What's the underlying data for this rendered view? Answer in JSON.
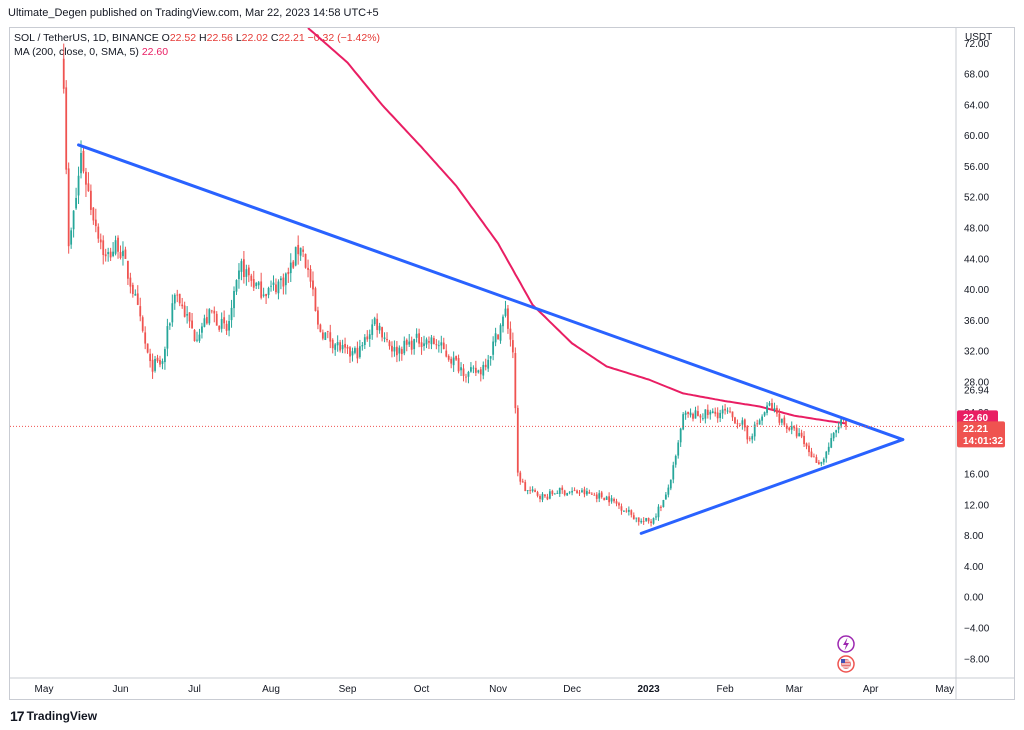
{
  "header": {
    "published_line": "Ultimate_Degen published on TradingView.com, Mar 22, 2023 14:58 UTC+5"
  },
  "legend": {
    "symbol": "SOL / TetherUS, 1D, BINANCE",
    "open_label": "O",
    "open": "22.52",
    "high_label": "H",
    "high": "22.56",
    "low_label": "L",
    "low": "22.02",
    "close_label": "C",
    "close": "22.21",
    "change": "−0.32 (−1.42%)",
    "ma_label": "MA (200, close, 0, SMA, 5)",
    "ma_value": "22.60"
  },
  "footer": {
    "brand": "TradingView",
    "logo": "17"
  },
  "colors": {
    "up": "#26a69a",
    "down": "#ef5350",
    "ma": "#e91e63",
    "trendline": "#2962ff",
    "price_line": "#ef5350",
    "grid": "#ffffff"
  },
  "chart_data": {
    "type": "candlestick",
    "symbol": "SOL / TetherUS",
    "interval": "1D",
    "exchange": "BINANCE",
    "y_axis_unit": "USDT",
    "ylim": [
      -10.5,
      74
    ],
    "y_ticks": [
      "72.00",
      "68.00",
      "64.00",
      "60.00",
      "56.00",
      "52.00",
      "48.00",
      "44.00",
      "40.00",
      "36.00",
      "32.00",
      "28.00",
      "24.00",
      "20.00",
      "16.00",
      "12.00",
      "8.00",
      "4.00",
      "0.00",
      "−4.00",
      "−8.00"
    ],
    "y_tick_values": [
      72,
      68,
      64,
      60,
      56,
      52,
      48,
      44,
      40,
      36,
      32,
      28,
      24,
      20,
      16,
      12,
      8,
      4,
      0,
      -4,
      -8
    ],
    "x_ticks": [
      "May",
      "Jun",
      "Jul",
      "Aug",
      "Sep",
      "Oct",
      "Nov",
      "Dec",
      "2023",
      "Feb",
      "Mar",
      "Apr",
      "May"
    ],
    "x_tick_dates": [
      "2022-05-01",
      "2022-06-01",
      "2022-07-01",
      "2022-08-01",
      "2022-09-01",
      "2022-10-01",
      "2022-11-01",
      "2022-12-01",
      "2023-01-01",
      "2023-02-01",
      "2023-03-01",
      "2023-04-01",
      "2023-05-01"
    ],
    "x_tick_bold": [
      false,
      false,
      false,
      false,
      false,
      false,
      false,
      false,
      true,
      false,
      false,
      false,
      false
    ],
    "price_anchors": [
      [
        "2022-05-09",
        68.0
      ],
      [
        "2022-05-11",
        45.0
      ],
      [
        "2022-05-14",
        52.0
      ],
      [
        "2022-05-16",
        57.5
      ],
      [
        "2022-05-20",
        51.0
      ],
      [
        "2022-05-26",
        44.0
      ],
      [
        "2022-05-31",
        46.0
      ],
      [
        "2022-06-06",
        40.0
      ],
      [
        "2022-06-13",
        30.0
      ],
      [
        "2022-06-18",
        30.5
      ],
      [
        "2022-06-23",
        40.0
      ],
      [
        "2022-07-01",
        34.0
      ],
      [
        "2022-07-08",
        37.0
      ],
      [
        "2022-07-14",
        34.5
      ],
      [
        "2022-07-20",
        43.0
      ],
      [
        "2022-07-27",
        40.0
      ],
      [
        "2022-08-01",
        40.0
      ],
      [
        "2022-08-08",
        42.0
      ],
      [
        "2022-08-13",
        46.0
      ],
      [
        "2022-08-17",
        41.0
      ],
      [
        "2022-08-20",
        35.0
      ],
      [
        "2022-08-27",
        33.0
      ],
      [
        "2022-09-01",
        31.5
      ],
      [
        "2022-09-06",
        32.0
      ],
      [
        "2022-09-12",
        36.0
      ],
      [
        "2022-09-20",
        32.0
      ],
      [
        "2022-09-30",
        33.5
      ],
      [
        "2022-10-07",
        33.0
      ],
      [
        "2022-10-13",
        31.0
      ],
      [
        "2022-10-20",
        29.0
      ],
      [
        "2022-10-25",
        29.5
      ],
      [
        "2022-10-29",
        32.0
      ],
      [
        "2022-11-04",
        37.0
      ],
      [
        "2022-11-07",
        32.0
      ],
      [
        "2022-11-09",
        16.0
      ],
      [
        "2022-11-12",
        14.0
      ],
      [
        "2022-11-20",
        13.0
      ],
      [
        "2022-11-25",
        13.8
      ],
      [
        "2022-12-05",
        13.6
      ],
      [
        "2022-12-15",
        13.0
      ],
      [
        "2022-12-22",
        11.5
      ],
      [
        "2022-12-29",
        9.8
      ],
      [
        "2023-01-02",
        9.9
      ],
      [
        "2023-01-08",
        13.0
      ],
      [
        "2023-01-12",
        18.0
      ],
      [
        "2023-01-15",
        23.5
      ],
      [
        "2023-01-25",
        23.8
      ],
      [
        "2023-02-01",
        24.0
      ],
      [
        "2023-02-08",
        22.5
      ],
      [
        "2023-02-10",
        20.5
      ],
      [
        "2023-02-16",
        23.5
      ],
      [
        "2023-02-19",
        25.0
      ],
      [
        "2023-02-25",
        22.5
      ],
      [
        "2023-03-03",
        21.0
      ],
      [
        "2023-03-09",
        18.0
      ],
      [
        "2023-03-12",
        17.5
      ],
      [
        "2023-03-17",
        21.0
      ],
      [
        "2023-03-20",
        23.0
      ],
      [
        "2023-03-22",
        22.21
      ]
    ],
    "ma_anchors": [
      [
        "2022-08-16",
        74.0
      ],
      [
        "2022-09-01",
        69.5
      ],
      [
        "2022-09-15",
        64.0
      ],
      [
        "2022-10-01",
        58.5
      ],
      [
        "2022-10-15",
        53.5
      ],
      [
        "2022-11-01",
        46.0
      ],
      [
        "2022-11-15",
        38.0
      ],
      [
        "2022-12-01",
        33.0
      ],
      [
        "2022-12-15",
        30.0
      ],
      [
        "2023-01-01",
        28.3
      ],
      [
        "2023-01-15",
        26.5
      ],
      [
        "2023-02-01",
        25.5
      ],
      [
        "2023-02-15",
        24.8
      ],
      [
        "2023-03-01",
        23.6
      ],
      [
        "2023-03-15",
        22.9
      ],
      [
        "2023-03-22",
        22.6
      ]
    ],
    "trendlines": [
      {
        "name": "resistance",
        "from": [
          "2022-05-15",
          58.8
        ],
        "to": [
          "2023-04-14",
          20.5
        ]
      },
      {
        "name": "support",
        "from": [
          "2022-12-29",
          8.3
        ],
        "to": [
          "2023-04-14",
          20.5
        ]
      }
    ],
    "price_labels": [
      {
        "value": "26.94",
        "style": "plain"
      },
      {
        "value": "22.60",
        "style": "ma-tag"
      },
      {
        "value": "22.21",
        "style": "last-price-tag",
        "countdown": "14:01:32"
      }
    ],
    "last_price": 22.21,
    "ma_value": 22.6,
    "crosshair_level": 26.94
  }
}
